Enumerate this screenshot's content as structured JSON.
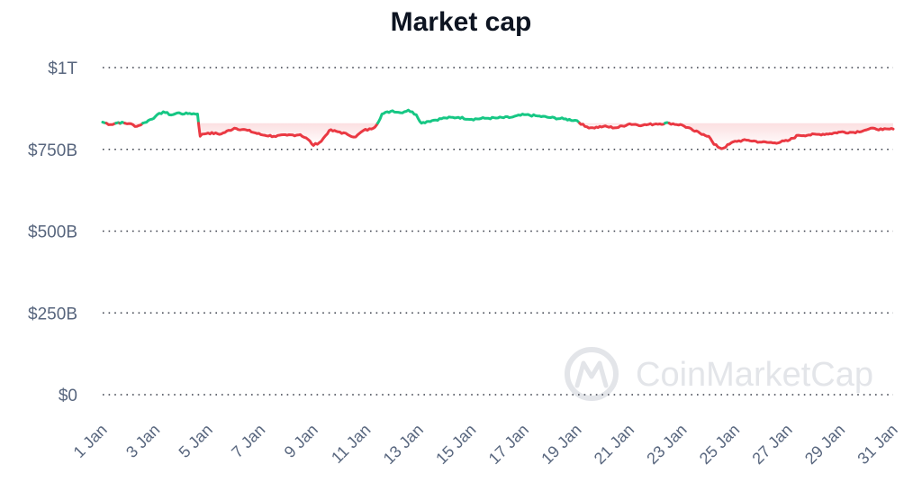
{
  "chart_data": {
    "type": "line",
    "title": "Market cap",
    "xlabel": "",
    "ylabel": "",
    "ylim": [
      0,
      1000
    ],
    "y_unit": "billions USD",
    "y_ticks": [
      {
        "value": 1000,
        "label": "$1T"
      },
      {
        "value": 750,
        "label": "$750B"
      },
      {
        "value": 500,
        "label": "$500B"
      },
      {
        "value": 250,
        "label": "$250B"
      },
      {
        "value": 0,
        "label": "$0"
      }
    ],
    "x_range": [
      0,
      30
    ],
    "x_ticks": [
      {
        "value": 0,
        "label": "1 Jan"
      },
      {
        "value": 2,
        "label": "3 Jan"
      },
      {
        "value": 4,
        "label": "5 Jan"
      },
      {
        "value": 6,
        "label": "7 Jan"
      },
      {
        "value": 8,
        "label": "9 Jan"
      },
      {
        "value": 10,
        "label": "11 Jan"
      },
      {
        "value": 12,
        "label": "13 Jan"
      },
      {
        "value": 14,
        "label": "15 Jan"
      },
      {
        "value": 16,
        "label": "17 Jan"
      },
      {
        "value": 18,
        "label": "19 Jan"
      },
      {
        "value": 20,
        "label": "21 Jan"
      },
      {
        "value": 22,
        "label": "23 Jan"
      },
      {
        "value": 24,
        "label": "25 Jan"
      },
      {
        "value": 26,
        "label": "27 Jan"
      },
      {
        "value": 28,
        "label": "29 Jan"
      },
      {
        "value": 30,
        "label": "31 Jan"
      }
    ],
    "baseline": 830,
    "colors": {
      "above": "#16c784",
      "below": "#ea3943",
      "grid": "#3a3f4a",
      "text": "#58667e",
      "title": "#0d1421"
    },
    "series": [
      {
        "name": "Market cap",
        "x": [
          0,
          0.3,
          0.6,
          1,
          1.3,
          1.6,
          2,
          2.3,
          2.6,
          2.9,
          3.1,
          3.3,
          3.6,
          3.7,
          3.8,
          4,
          4.5,
          5,
          5.5,
          6,
          6.5,
          7,
          7.5,
          7.8,
          8,
          8.3,
          8.6,
          9,
          9.3,
          9.6,
          9.9,
          10.2,
          10.4,
          10.6,
          11,
          11.3,
          11.6,
          11.9,
          12.1,
          12.3,
          12.5,
          13,
          13.5,
          14,
          14.5,
          15,
          15.5,
          16,
          16.5,
          17,
          17.5,
          18,
          18.3,
          18.6,
          19,
          19.5,
          20,
          20.5,
          21,
          21.5,
          22,
          22.4,
          22.8,
          23,
          23.2,
          23.5,
          24,
          24.5,
          25,
          25.5,
          26,
          26.4,
          26.8,
          27.2,
          27.6,
          28,
          28.5,
          29,
          29.3,
          29.6,
          30
        ],
        "values": [
          833,
          826,
          832,
          829,
          820,
          832,
          850,
          865,
          855,
          862,
          858,
          860,
          858,
          790,
          797,
          800,
          797,
          815,
          808,
          795,
          790,
          793,
          795,
          780,
          762,
          775,
          808,
          803,
          795,
          788,
          808,
          812,
          825,
          858,
          868,
          862,
          870,
          856,
          830,
          835,
          838,
          846,
          848,
          842,
          845,
          846,
          848,
          856,
          852,
          847,
          843,
          838,
          820,
          816,
          820,
          816,
          828,
          824,
          828,
          830,
          824,
          808,
          796,
          790,
          765,
          752,
          775,
          778,
          772,
          770,
          776,
          793,
          794,
          796,
          798,
          803,
          802,
          810,
          814,
          810,
          812
        ]
      }
    ],
    "watermark": "CoinMarketCap"
  }
}
